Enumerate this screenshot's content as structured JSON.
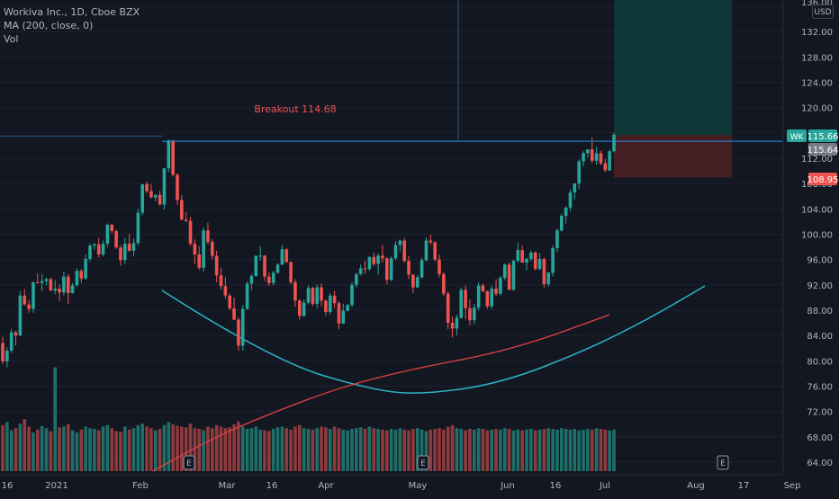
{
  "header": {
    "title": "Workiva Inc., 1D, Cboe BZX",
    "ma_label": "MA (200, close, 0)",
    "vol_label": "Vol"
  },
  "currency_button": "USD",
  "price_axis": {
    "ticks": [
      "132.00",
      "128.00",
      "124.00",
      "120.00",
      "112.00",
      "108.00",
      "104.00",
      "100.00",
      "96.00",
      "92.00",
      "88.00",
      "84.00",
      "80.00",
      "76.00",
      "72.00",
      "68.00",
      "64.00"
    ],
    "partial_top_tick": "136.00"
  },
  "time_axis": {
    "labels": [
      "16",
      "2021",
      "Feb",
      "Mar",
      "16",
      "Apr",
      "May",
      "Jun",
      "16",
      "Jul",
      "Aug",
      "17",
      "Sep"
    ]
  },
  "markers": {
    "last_price_ticker": "WK",
    "last_price": "115.66",
    "crosshair_price": "115.64",
    "stop_price": "108.95",
    "earnings_label": "E"
  },
  "annotations": {
    "breakout_label": "Breakout 114.68"
  },
  "colors": {
    "background": "#131722",
    "up": "#26a69a",
    "down": "#ef5350",
    "up_volume": "#1f6f69",
    "down_volume": "#8f3a3d",
    "ma_line": "#e0423f",
    "cup_curve": "#2bb5c4",
    "breakout_line": "#2196f3",
    "target_zone": "#0d3b38",
    "stop_zone": "#4a1f24",
    "grid": "#1e2230"
  },
  "chart_data": {
    "type": "candlestick",
    "symbol": "WK",
    "interval": "1D",
    "y_range": [
      62,
      137
    ],
    "breakout_level": 114.68,
    "last_close": 115.66,
    "target_zone": [
      115.66,
      137
    ],
    "stop_zone": [
      108.95,
      115.66
    ],
    "ma_200": [
      [
        40,
        62.5
      ],
      [
        90,
        66
      ],
      [
        150,
        72
      ],
      [
        210,
        77
      ],
      [
        270,
        81
      ],
      [
        330,
        84
      ],
      [
        390,
        86.5
      ],
      [
        445,
        89.5
      ],
      [
        482,
        93
      ],
      [
        496,
        95.5
      ],
      [
        502,
        98
      ]
    ],
    "cup_curve": [
      [
        0,
        92
      ],
      [
        80,
        85
      ],
      [
        180,
        79
      ],
      [
        300,
        75.5
      ],
      [
        370,
        76
      ],
      [
        450,
        80
      ],
      [
        540,
        87
      ],
      [
        590,
        92.5
      ]
    ],
    "volume_max": 100,
    "earnings_bar_indices": [
      155,
      340,
      623
    ],
    "candles": [
      [
        82.8,
        83.8,
        79.5,
        79.9
      ],
      [
        79.9,
        82.1,
        79.0,
        81.6
      ],
      [
        81.6,
        85.0,
        81.2,
        84.5
      ],
      [
        84.5,
        84.8,
        82.4,
        84.0
      ],
      [
        84.0,
        91.0,
        83.9,
        90.3
      ],
      [
        90.3,
        91.3,
        88.7,
        88.9
      ],
      [
        88.9,
        89.6,
        87.6,
        88.2
      ],
      [
        88.2,
        92.5,
        87.6,
        92.4
      ],
      [
        92.4,
        93.8,
        92.2,
        92.3
      ],
      [
        92.3,
        93.7,
        91.0,
        92.6
      ],
      [
        92.6,
        93.1,
        91.9,
        92.9
      ],
      [
        92.9,
        93.1,
        91.0,
        91.1
      ],
      [
        91.1,
        92.7,
        90.5,
        91.4
      ],
      [
        91.4,
        92.1,
        89.5,
        90.8
      ],
      [
        90.8,
        94.1,
        90.3,
        93.3
      ],
      [
        93.3,
        93.7,
        89.0,
        90.7
      ],
      [
        90.7,
        92.3,
        90.6,
        91.9
      ],
      [
        91.9,
        94.6,
        91.8,
        94.2
      ],
      [
        94.2,
        94.5,
        92.3,
        93.0
      ],
      [
        93.0,
        96.8,
        92.8,
        96.1
      ],
      [
        96.1,
        98.5,
        95.7,
        98.2
      ],
      [
        98.2,
        98.6,
        97.5,
        98.4
      ],
      [
        98.4,
        99.4,
        96.3,
        96.8
      ],
      [
        96.8,
        99.0,
        96.5,
        98.5
      ],
      [
        98.5,
        101.7,
        98.0,
        101.5
      ],
      [
        101.5,
        101.6,
        100.1,
        100.5
      ],
      [
        100.5,
        100.7,
        97.7,
        97.9
      ],
      [
        97.9,
        98.3,
        95.0,
        95.9
      ],
      [
        95.9,
        99.4,
        95.3,
        98.5
      ],
      [
        98.5,
        100.0,
        97.2,
        97.4
      ],
      [
        97.4,
        99.3,
        96.5,
        98.6
      ],
      [
        98.6,
        104.0,
        98.2,
        103.4
      ],
      [
        103.4,
        107.9,
        103.0,
        107.9
      ],
      [
        107.9,
        108.3,
        106.5,
        106.8
      ],
      [
        106.8,
        107.9,
        105.7,
        105.8
      ],
      [
        105.8,
        106.3,
        105.2,
        106.2
      ],
      [
        106.2,
        106.9,
        104.5,
        104.7
      ],
      [
        104.7,
        110.5,
        103.9,
        110.4
      ],
      [
        110.4,
        115.0,
        109.8,
        114.8
      ],
      [
        114.8,
        114.9,
        109.1,
        109.4
      ],
      [
        109.4,
        109.6,
        104.6,
        105.4
      ],
      [
        105.4,
        106.2,
        102.2,
        102.3
      ],
      [
        102.3,
        103.5,
        101.9,
        102.1
      ],
      [
        102.1,
        102.7,
        98.1,
        98.5
      ],
      [
        98.5,
        99.2,
        95.3,
        96.8
      ],
      [
        96.8,
        98.1,
        94.4,
        94.7
      ],
      [
        94.7,
        101.1,
        94.1,
        100.6
      ],
      [
        100.6,
        101.8,
        98.4,
        98.8
      ],
      [
        98.8,
        99.2,
        96.0,
        96.6
      ],
      [
        96.6,
        97.4,
        92.4,
        93.5
      ],
      [
        93.5,
        94.7,
        91.2,
        91.8
      ],
      [
        91.8,
        93.2,
        89.8,
        90.3
      ],
      [
        90.3,
        90.6,
        88.0,
        88.3
      ],
      [
        88.3,
        90.0,
        86.4,
        86.5
      ],
      [
        86.5,
        86.9,
        81.6,
        82.4
      ],
      [
        82.4,
        88.8,
        81.6,
        88.2
      ],
      [
        88.2,
        92.5,
        88.1,
        92.2
      ],
      [
        92.2,
        93.7,
        91.2,
        93.4
      ],
      [
        93.4,
        96.6,
        93.3,
        96.6
      ],
      [
        96.6,
        98.1,
        95.8,
        96.6
      ],
      [
        96.6,
        96.7,
        92.6,
        93.3
      ],
      [
        93.3,
        94.0,
        91.8,
        92.3
      ],
      [
        92.3,
        94.2,
        91.9,
        93.9
      ],
      [
        93.9,
        95.4,
        93.8,
        95.2
      ],
      [
        95.2,
        98.3,
        95.1,
        97.6
      ],
      [
        97.6,
        97.8,
        95.5,
        95.6
      ],
      [
        95.6,
        95.7,
        92.1,
        92.4
      ],
      [
        92.4,
        92.9,
        88.5,
        89.5
      ],
      [
        89.5,
        89.7,
        86.5,
        87.1
      ],
      [
        87.1,
        89.7,
        86.9,
        89.2
      ],
      [
        89.2,
        91.9,
        88.9,
        91.5
      ],
      [
        91.5,
        91.7,
        88.6,
        89.0
      ],
      [
        89.0,
        92.1,
        88.3,
        91.6
      ],
      [
        91.6,
        92.2,
        88.6,
        89.5
      ],
      [
        89.5,
        89.7,
        87.1,
        87.7
      ],
      [
        87.7,
        90.7,
        87.3,
        90.3
      ],
      [
        90.3,
        91.1,
        88.3,
        89.1
      ],
      [
        89.1,
        89.4,
        85.0,
        85.9
      ],
      [
        85.9,
        89.0,
        85.8,
        87.9
      ],
      [
        87.9,
        89.0,
        87.8,
        88.8
      ],
      [
        88.8,
        92.4,
        88.5,
        92.0
      ],
      [
        92.0,
        93.9,
        91.6,
        93.7
      ],
      [
        93.7,
        95.2,
        93.5,
        94.6
      ],
      [
        94.6,
        95.8,
        93.7,
        94.5
      ],
      [
        94.5,
        96.5,
        94.2,
        96.4
      ],
      [
        96.4,
        97.1,
        94.9,
        95.3
      ],
      [
        95.3,
        97.0,
        93.6,
        96.6
      ],
      [
        96.6,
        98.3,
        95.5,
        96.2
      ],
      [
        96.2,
        96.4,
        92.1,
        92.8
      ],
      [
        92.8,
        96.5,
        92.6,
        96.2
      ],
      [
        96.2,
        98.9,
        95.9,
        98.3
      ],
      [
        98.3,
        99.1,
        97.3,
        99.0
      ],
      [
        99.0,
        99.4,
        95.5,
        95.8
      ],
      [
        95.8,
        96.6,
        92.9,
        93.6
      ],
      [
        93.6,
        93.7,
        90.7,
        91.6
      ],
      [
        91.6,
        93.6,
        91.5,
        93.2
      ],
      [
        93.2,
        96.3,
        93.0,
        95.9
      ],
      [
        95.9,
        99.5,
        95.7,
        99.0
      ],
      [
        99.0,
        99.9,
        98.3,
        98.7
      ],
      [
        98.7,
        98.9,
        95.7,
        96.0
      ],
      [
        96.0,
        96.8,
        93.2,
        93.7
      ],
      [
        93.7,
        94.0,
        90.2,
        90.6
      ],
      [
        90.6,
        90.9,
        85.0,
        86.0
      ],
      [
        86.0,
        87.0,
        83.7,
        85.1
      ],
      [
        85.1,
        87.3,
        84.0,
        86.8
      ],
      [
        86.8,
        91.6,
        86.6,
        91.2
      ],
      [
        91.2,
        91.9,
        86.6,
        88.3
      ],
      [
        88.3,
        89.7,
        85.6,
        86.4
      ],
      [
        86.4,
        89.0,
        85.8,
        88.4
      ],
      [
        88.4,
        92.4,
        88.0,
        91.9
      ],
      [
        91.9,
        92.2,
        90.8,
        91.0
      ],
      [
        91.0,
        91.1,
        88.2,
        88.6
      ],
      [
        88.6,
        91.9,
        88.2,
        91.4
      ],
      [
        91.4,
        92.9,
        90.2,
        90.6
      ],
      [
        90.6,
        93.4,
        90.3,
        93.1
      ],
      [
        93.1,
        95.4,
        92.7,
        95.2
      ],
      [
        95.2,
        95.6,
        91.2,
        91.2
      ],
      [
        91.2,
        96.0,
        91.1,
        95.8
      ],
      [
        95.8,
        98.6,
        95.5,
        97.5
      ],
      [
        97.5,
        98.2,
        95.5,
        95.5
      ],
      [
        95.5,
        96.3,
        94.3,
        96.1
      ],
      [
        96.1,
        97.4,
        95.7,
        97.1
      ],
      [
        97.1,
        97.3,
        94.3,
        94.5
      ],
      [
        94.5,
        97.0,
        94.3,
        96.1
      ],
      [
        96.1,
        96.3,
        91.6,
        92.1
      ],
      [
        92.1,
        94.1,
        91.7,
        93.9
      ],
      [
        93.9,
        98.2,
        93.3,
        97.8
      ],
      [
        97.8,
        100.9,
        97.2,
        100.6
      ],
      [
        100.6,
        103.2,
        100.4,
        102.9
      ],
      [
        102.9,
        104.4,
        101.7,
        104.2
      ],
      [
        104.2,
        107.1,
        103.6,
        106.6
      ],
      [
        106.6,
        108.1,
        105.5,
        108.0
      ],
      [
        108.0,
        111.8,
        107.1,
        111.5
      ],
      [
        111.5,
        113.1,
        110.7,
        112.8
      ],
      [
        112.8,
        113.4,
        112.1,
        113.4
      ],
      [
        113.4,
        115.3,
        111.2,
        111.6
      ],
      [
        111.6,
        113.8,
        111.0,
        112.8
      ],
      [
        112.8,
        113.2,
        110.9,
        111.2
      ],
      [
        111.2,
        111.9,
        109.8,
        110.1
      ],
      [
        110.1,
        113.3,
        110.0,
        113.1
      ],
      [
        113.1,
        116.0,
        112.9,
        115.7
      ]
    ],
    "volumes": [
      62,
      66,
      55,
      58,
      64,
      70,
      60,
      52,
      56,
      61,
      58,
      54,
      57,
      59,
      60,
      63,
      55,
      52,
      56,
      60,
      58,
      57,
      55,
      60,
      62,
      58,
      54,
      53,
      60,
      56,
      58,
      62,
      64,
      60,
      58,
      55,
      57,
      62,
      66,
      63,
      61,
      60,
      59,
      64,
      58,
      57,
      55,
      60,
      58,
      62,
      60,
      58,
      59,
      63,
      67,
      60,
      57,
      58,
      60,
      56,
      55,
      54,
      57,
      59,
      60,
      58,
      56,
      60,
      62,
      58,
      57,
      56,
      58,
      60,
      59,
      57,
      60,
      58,
      56,
      55,
      57,
      58,
      59,
      57,
      60,
      58,
      57,
      56,
      55,
      57,
      56,
      58,
      56,
      55,
      57,
      58,
      56,
      54,
      56,
      57,
      58,
      56,
      60,
      62,
      58,
      57,
      55,
      57,
      56,
      58,
      57,
      55,
      56,
      57,
      56,
      58,
      57,
      55,
      56,
      55,
      56,
      57,
      55,
      56,
      57,
      58,
      57,
      56,
      58,
      57,
      56,
      57,
      55,
      56,
      57,
      56,
      58,
      57,
      56,
      55,
      56
    ]
  }
}
